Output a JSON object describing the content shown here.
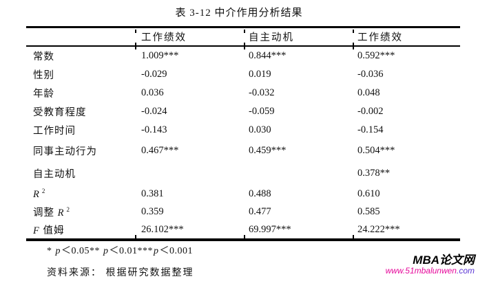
{
  "title": "表 3-12 中介作用分析结果",
  "table": {
    "columns": [
      "工作绩效",
      "自主动机",
      "工作绩效"
    ],
    "rows": [
      {
        "label": "常数",
        "values": [
          "1.009***",
          "0.844***",
          "0.592***"
        ]
      },
      {
        "label": "性别",
        "values": [
          "-0.029",
          "0.019",
          "-0.036"
        ]
      },
      {
        "label": "年龄",
        "values": [
          "0.036",
          "-0.032",
          "0.048"
        ]
      },
      {
        "label": "受教育程度",
        "values": [
          "-0.024",
          "-0.059",
          "-0.002"
        ]
      },
      {
        "label": "工作时间",
        "values": [
          "-0.143",
          "0.030",
          "-0.154"
        ]
      },
      {
        "label": "同事主动行为",
        "values": [
          "0.467***",
          "0.459***",
          "0.504***"
        ]
      },
      {
        "label": "自主动机",
        "values": [
          "",
          "",
          "0.378**"
        ]
      },
      {
        "pre": "",
        "it": "R",
        "sup": "2",
        "post": "",
        "values": [
          "0.381",
          "0.488",
          "0.610"
        ]
      },
      {
        "pre": "调整 ",
        "it": "R",
        "sup": "2",
        "post": "",
        "values": [
          "0.359",
          "0.477",
          "0.585"
        ]
      },
      {
        "pre": "",
        "it": "F",
        "sup": "",
        "post": " 值姆",
        "values": [
          "26.102***",
          "69.997***",
          "24.222***"
        ]
      }
    ]
  },
  "footnote": {
    "parts": [
      {
        "text": "* ",
        "italic": false
      },
      {
        "text": "p",
        "italic": true
      },
      {
        "text": "＜0.05** ",
        "italic": false
      },
      {
        "text": "p",
        "italic": true
      },
      {
        "text": "＜0.01***",
        "italic": false
      },
      {
        "text": "p",
        "italic": true
      },
      {
        "text": "＜0.001",
        "italic": false
      }
    ]
  },
  "source": "资料来源： 根据研究数据整理",
  "watermark": {
    "name": "MBA论文网",
    "url_main": "www.51mbalunwen",
    "url_suffix": ".com",
    "url_main_color": "#e6099b",
    "url_suffix_color": "#5a35d5"
  },
  "colors": {
    "text": "#111111",
    "rule": "#000000",
    "background": "#ffffff"
  }
}
